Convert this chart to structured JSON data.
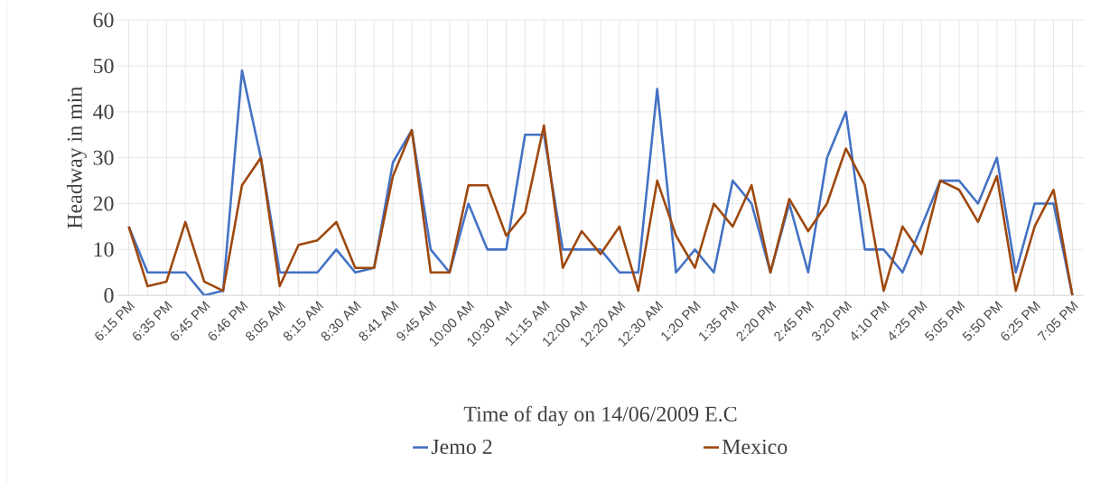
{
  "chart_data": {
    "type": "line",
    "xlabel": "Time of day on 14/06/2009 E.C",
    "ylabel": "Headway in min",
    "categories": [
      "6:15 PM",
      null,
      "6:35 PM",
      null,
      "6:45 PM",
      null,
      "6:46 PM",
      null,
      "8:05 AM",
      null,
      "8:15 AM",
      null,
      "8:30 AM",
      null,
      "8:41 AM",
      null,
      "9:45 AM",
      null,
      "10:00 AM",
      null,
      "10:30 AM",
      null,
      "11:15 AM",
      null,
      "12:00 AM",
      null,
      "12:20 AM",
      null,
      "12:30 AM",
      null,
      "1:20 PM",
      null,
      "1:35 PM",
      null,
      "2:20 PM",
      null,
      "2:45 PM",
      null,
      "3:20 PM",
      null,
      "4:10 PM",
      null,
      "4:25 PM",
      null,
      "5:05 PM",
      null,
      "5:50 PM",
      null,
      "6:25 PM",
      null,
      "7:05 PM"
    ],
    "series": [
      {
        "name": "Jemo 2",
        "color": "#4472c4",
        "values": [
          15,
          5,
          5,
          5,
          0,
          1,
          49,
          30,
          5,
          5,
          5,
          10,
          5,
          6,
          29,
          36,
          10,
          5,
          20,
          10,
          10,
          35,
          35,
          10,
          10,
          10,
          5,
          5,
          45,
          5,
          10,
          5,
          25,
          20,
          5,
          20,
          5,
          30,
          40,
          10,
          10,
          5,
          15,
          25,
          25,
          20,
          30,
          5,
          20,
          20,
          0
        ]
      },
      {
        "name": "Mexico",
        "color": "#9e480e",
        "values": [
          15,
          2,
          3,
          16,
          3,
          1,
          24,
          30,
          2,
          11,
          12,
          16,
          6,
          6,
          26,
          36,
          5,
          5,
          24,
          24,
          13,
          18,
          37,
          6,
          14,
          9,
          15,
          1,
          25,
          13,
          6,
          20,
          15,
          24,
          5,
          21,
          14,
          20,
          32,
          24,
          1,
          15,
          9,
          25,
          23,
          16,
          26,
          1,
          15,
          23,
          0
        ]
      }
    ],
    "ylim": [
      0,
      60
    ],
    "yticks": [
      0,
      10,
      20,
      30,
      40,
      50,
      60
    ],
    "grid": true,
    "legend": "bottom"
  }
}
